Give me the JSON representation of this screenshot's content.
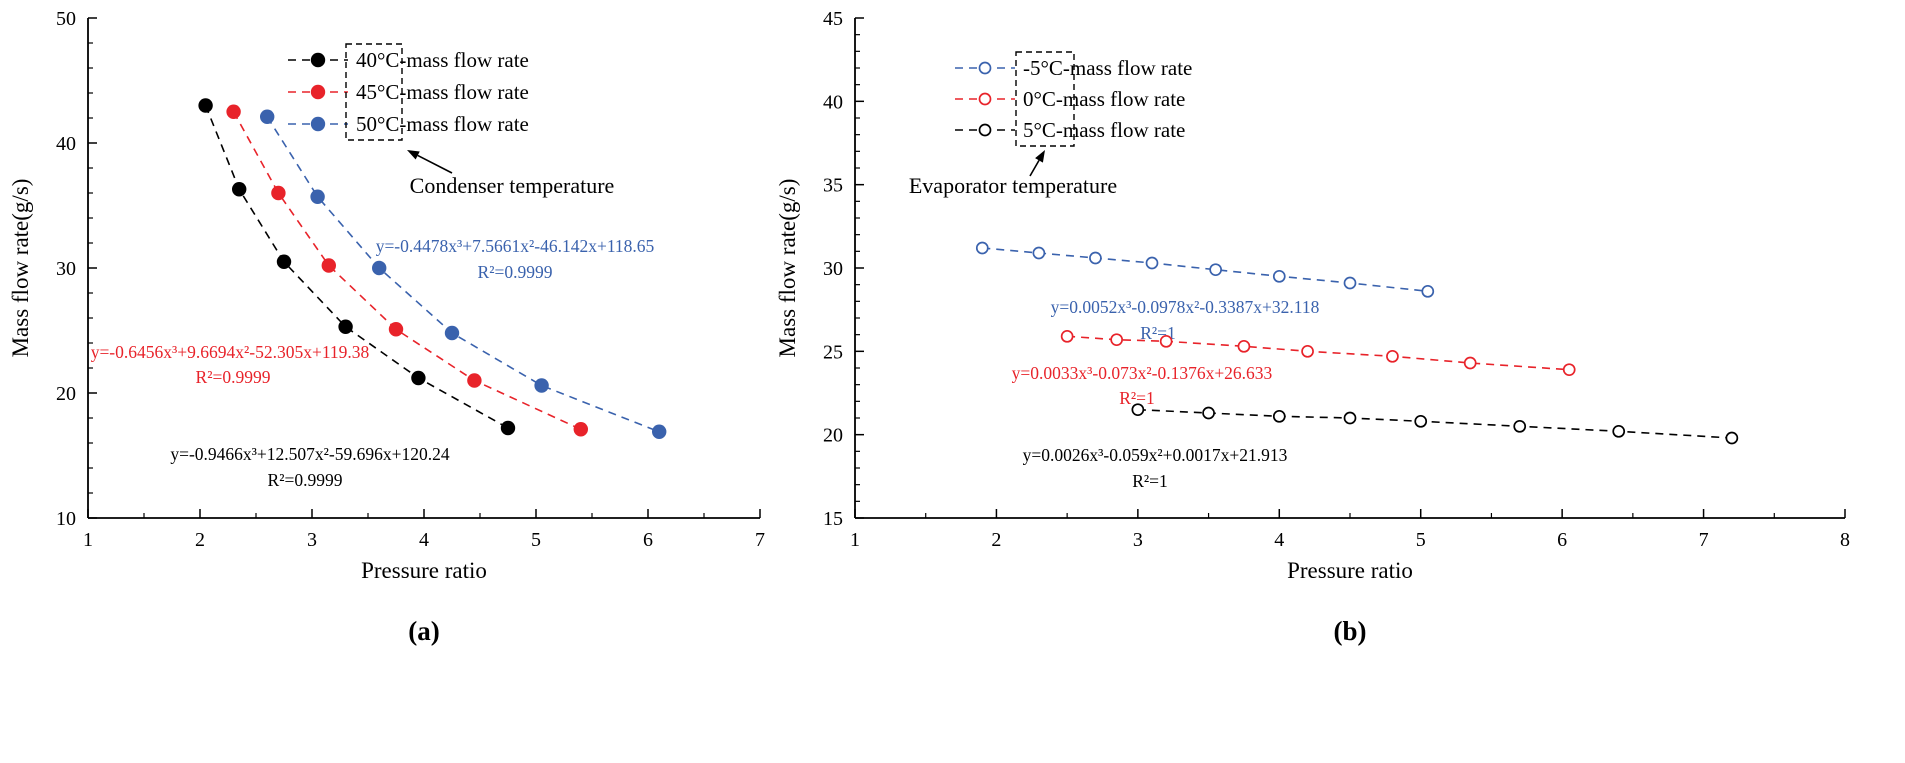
{
  "figure": {
    "captions": [
      "(a)",
      "(b)"
    ]
  },
  "chart_data": [
    {
      "panel": "a",
      "type": "line",
      "title": "",
      "xlabel": "Pressure ratio",
      "ylabel": "Mass flow rate(g/s)",
      "xlim": [
        1,
        7
      ],
      "ylim": [
        10,
        50
      ],
      "xticks": [
        1,
        2,
        3,
        4,
        5,
        6,
        7
      ],
      "yticks": [
        10,
        20,
        30,
        40,
        50
      ],
      "x_minor_step": 0.5,
      "y_minor_step": 2,
      "grid": false,
      "legend_position": "upper-center",
      "legend_group_label": "Condenser temperature",
      "series": [
        {
          "name": "40°C-mass flow rate",
          "color": "#000000",
          "marker": "circle-filled",
          "line_style": "dashed",
          "x": [
            2.05,
            2.35,
            2.75,
            3.3,
            3.95,
            4.75
          ],
          "y": [
            43.0,
            36.3,
            30.5,
            25.3,
            21.2,
            17.2
          ],
          "fit_equation": "y=-0.9466x³+12.507x²-59.696x+120.24",
          "fit_r2": "R²=0.9999"
        },
        {
          "name": "45°C-mass flow rate",
          "color": "#e8232a",
          "marker": "circle-filled",
          "line_style": "dashed",
          "x": [
            2.3,
            2.7,
            3.15,
            3.75,
            4.45,
            5.4
          ],
          "y": [
            42.5,
            36.0,
            30.2,
            25.1,
            21.0,
            17.1
          ],
          "fit_equation": "y=-0.6456x³+9.6694x²-52.305x+119.38",
          "fit_r2": "R²=0.9999"
        },
        {
          "name": "50°C-mass flow rate",
          "color": "#3a62ad",
          "marker": "circle-filled",
          "line_style": "dashed",
          "x": [
            2.6,
            3.05,
            3.6,
            4.25,
            5.05,
            6.1
          ],
          "y": [
            42.1,
            35.7,
            30.0,
            24.8,
            20.6,
            16.9
          ],
          "fit_equation": "y=-0.4478x³+7.5661x²-46.142x+118.65",
          "fit_r2": "R²=0.9999"
        }
      ]
    },
    {
      "panel": "b",
      "type": "line",
      "title": "",
      "xlabel": "Pressure ratio",
      "ylabel": "Mass flow rate(g/s)",
      "xlim": [
        1,
        8
      ],
      "ylim": [
        15,
        45
      ],
      "xticks": [
        1,
        2,
        3,
        4,
        5,
        6,
        7,
        8
      ],
      "yticks": [
        15,
        20,
        25,
        30,
        35,
        40,
        45
      ],
      "x_minor_step": 0.5,
      "y_minor_step": 1,
      "grid": false,
      "legend_position": "upper-center",
      "legend_group_label": "Evaporator temperature",
      "series": [
        {
          "name": "-5°C-mass flow rate",
          "color": "#3a62ad",
          "marker": "circle-open",
          "line_style": "dashed",
          "x": [
            1.9,
            2.3,
            2.7,
            3.1,
            3.55,
            4.0,
            4.5,
            5.05
          ],
          "y": [
            31.2,
            30.9,
            30.6,
            30.3,
            29.9,
            29.5,
            29.1,
            28.6
          ],
          "fit_equation": "y=0.0052x³-0.0978x²-0.3387x+32.118",
          "fit_r2": "R²=1"
        },
        {
          "name": "0°C-mass flow rate",
          "color": "#e8232a",
          "marker": "circle-open",
          "line_style": "dashed",
          "x": [
            2.5,
            2.85,
            3.2,
            3.75,
            4.2,
            4.8,
            5.35,
            6.05
          ],
          "y": [
            25.9,
            25.7,
            25.6,
            25.3,
            25.0,
            24.7,
            24.3,
            23.9
          ],
          "fit_equation": "y=0.0033x³-0.073x²-0.1376x+26.633",
          "fit_r2": "R²=1"
        },
        {
          "name": "5°C-mass flow rate",
          "color": "#000000",
          "marker": "circle-open",
          "line_style": "dashed",
          "x": [
            3.0,
            3.5,
            4.0,
            4.5,
            5.0,
            5.7,
            6.4,
            7.2
          ],
          "y": [
            21.5,
            21.3,
            21.1,
            21.0,
            20.8,
            20.5,
            20.2,
            19.8
          ],
          "fit_equation": "y=0.0026x³-0.059x²+0.0017x+21.913",
          "fit_r2": "R²=1"
        }
      ]
    }
  ]
}
